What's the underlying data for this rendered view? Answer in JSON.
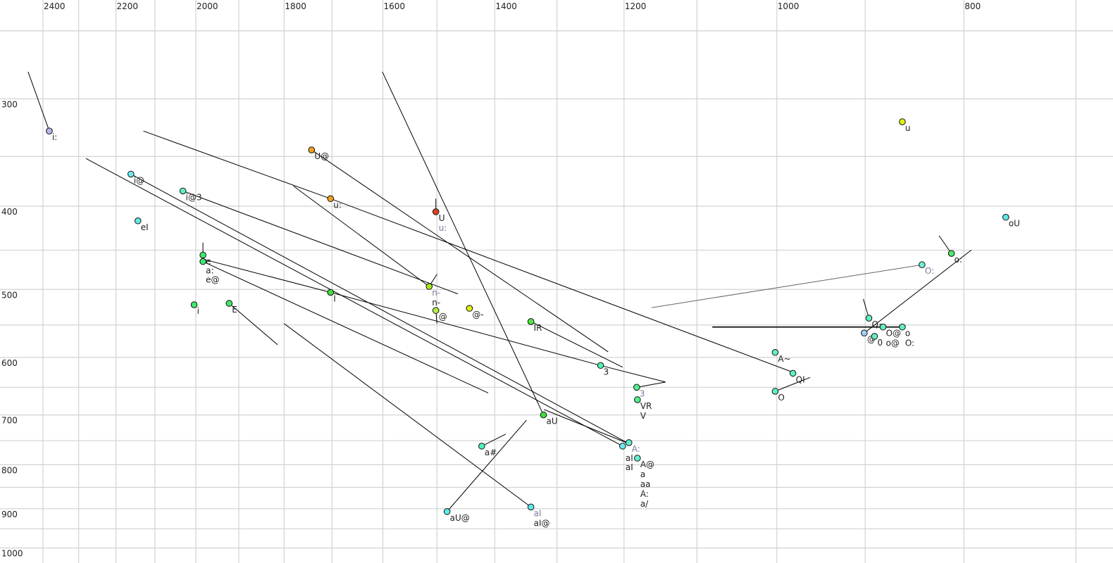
{
  "chart_data": {
    "type": "scatter",
    "title": "",
    "xlabel": "",
    "ylabel": "",
    "x_axis": {
      "quantity": "F2",
      "reversed": true,
      "scale": "log",
      "range": [
        2450,
        680
      ],
      "grid": [
        700,
        800,
        900,
        1000,
        1100,
        1200,
        1300,
        1400,
        1500,
        1600,
        1700,
        1800,
        1900,
        2000,
        2100,
        2200,
        2300,
        2400
      ],
      "tick_labels": [
        "2400",
        "2200",
        "2000",
        "1800",
        "1600",
        "1400",
        "1200",
        "1000",
        "800"
      ],
      "tick_values": [
        2400,
        2200,
        2000,
        1800,
        1600,
        1400,
        1200,
        1000,
        800
      ],
      "position": "top"
    },
    "y_axis": {
      "quantity": "F1",
      "reversed": false,
      "scale": "log",
      "range": [
        235,
        1020
      ],
      "grid": [
        250,
        300,
        350,
        400,
        450,
        500,
        550,
        600,
        650,
        700,
        750,
        800,
        850,
        900,
        950,
        1000
      ],
      "tick_labels": [
        "300",
        "400",
        "500",
        "600",
        "700",
        "800",
        "900",
        "1000"
      ],
      "tick_values": [
        300,
        400,
        500,
        600,
        700,
        800,
        900,
        1000
      ],
      "position": "left"
    },
    "grid": true,
    "points": [
      {
        "f2": 2382,
        "f1": 327,
        "color": "#b8b8f0",
        "labels": [
          {
            "t": "i:"
          }
        ]
      },
      {
        "f2": 2161,
        "f1": 367,
        "color": "#70e8f0",
        "labels": [
          {
            "t": "i@"
          }
        ]
      },
      {
        "f2": 2031,
        "f1": 384,
        "color": "#60f0c0",
        "labels": [
          {
            "t": "i@3"
          }
        ]
      },
      {
        "f2": 2143,
        "f1": 416,
        "color": "#60e8e0",
        "labels": [
          {
            "t": "eI"
          }
        ]
      },
      {
        "f2": 1983,
        "f1": 456,
        "color": "#40e870",
        "labels": [
          {
            "t": "e"
          }
        ]
      },
      {
        "f2": 1983,
        "f1": 464,
        "color": "#40e870",
        "labels": [
          {
            "t": "a:"
          },
          {
            "t": "e@"
          }
        ]
      },
      {
        "f2": 2004,
        "f1": 521,
        "color": "#40e870",
        "labels": [
          {
            "t": "i"
          }
        ]
      },
      {
        "f2": 1922,
        "f1": 519,
        "color": "#40e870",
        "labels": [
          {
            "t": "E"
          }
        ]
      },
      {
        "f2": 1703,
        "f1": 504,
        "color": "#40e040",
        "labels": [
          {
            "t": "I"
          }
        ]
      },
      {
        "f2": 1742,
        "f1": 344,
        "color": "#f0a020",
        "labels": [
          {
            "t": "U@"
          }
        ]
      },
      {
        "f2": 1703,
        "f1": 392,
        "color": "#f0a020",
        "labels": [
          {
            "t": "u:"
          }
        ]
      },
      {
        "f2": 1502,
        "f1": 406,
        "color": "#e04020",
        "labels": [
          {
            "t": "U"
          },
          {
            "t": "u:",
            "grey": true
          }
        ]
      },
      {
        "f2": 1514,
        "f1": 496,
        "color": "#a8e820",
        "labels": [
          {
            "t": "n-",
            "grey": true
          },
          {
            "t": "n-"
          }
        ]
      },
      {
        "f2": 1502,
        "f1": 529,
        "color": "#b0f040",
        "labels": [
          {
            "t": "@"
          }
        ]
      },
      {
        "f2": 1443,
        "f1": 526,
        "color": "#e0f010",
        "labels": [
          {
            "t": "@-"
          }
        ]
      },
      {
        "f2": 1341,
        "f1": 545,
        "color": "#50e840",
        "labels": [
          {
            "t": "IR"
          }
        ]
      },
      {
        "f2": 1234,
        "f1": 613,
        "color": "#50f0b0",
        "labels": [
          {
            "t": "3"
          }
        ]
      },
      {
        "f2": 1182,
        "f1": 650,
        "color": "#50f090",
        "labels": [
          {
            "t": "3",
            "grey": true
          }
        ]
      },
      {
        "f2": 1181,
        "f1": 672,
        "color": "#50f090",
        "labels": [
          {
            "t": "VR"
          },
          {
            "t": "V"
          }
        ]
      },
      {
        "f2": 1321,
        "f1": 700,
        "color": "#40e040",
        "labels": [
          {
            "t": "aU"
          }
        ]
      },
      {
        "f2": 1422,
        "f1": 761,
        "color": "#50f0c0",
        "labels": [
          {
            "t": "a#"
          }
        ]
      },
      {
        "f2": 1482,
        "f1": 907,
        "color": "#60e8e8",
        "labels": [
          {
            "t": "aU@"
          }
        ]
      },
      {
        "f2": 1341,
        "f1": 896,
        "color": "#60e8e8",
        "labels": [
          {
            "t": "aI",
            "grey": true
          },
          {
            "t": "aI@"
          }
        ]
      },
      {
        "f2": 1193,
        "f1": 754,
        "color": "#60f0d0",
        "labels": [
          {
            "t": "A:",
            "grey": true
          }
        ]
      },
      {
        "f2": 1202,
        "f1": 761,
        "color": "#70e8f0",
        "labels": [
          {
            "t": "aI"
          },
          {
            "t": "aI"
          }
        ]
      },
      {
        "f2": 1181,
        "f1": 786,
        "color": "#60f0d0",
        "labels": [
          {
            "t": "A@"
          },
          {
            "t": "a"
          },
          {
            "t": "aa"
          },
          {
            "t": "A:"
          },
          {
            "t": "a/"
          }
        ]
      },
      {
        "f2": 1002,
        "f1": 592,
        "color": "#60f0c0",
        "labels": [
          {
            "t": "A~"
          }
        ]
      },
      {
        "f2": 981,
        "f1": 626,
        "color": "#60f0c0",
        "labels": [
          {
            "t": "QI"
          }
        ]
      },
      {
        "f2": 1002,
        "f1": 657,
        "color": "#60f0c0",
        "labels": [
          {
            "t": "O"
          }
        ]
      },
      {
        "f2": 861,
        "f1": 319,
        "color": "#e0f010",
        "labels": [
          {
            "t": "u"
          }
        ]
      },
      {
        "f2": 761,
        "f1": 412,
        "color": "#60e8e8",
        "labels": [
          {
            "t": "oU"
          }
        ]
      },
      {
        "f2": 812,
        "f1": 454,
        "color": "#50e870",
        "labels": [
          {
            "t": "o:"
          }
        ]
      },
      {
        "f2": 841,
        "f1": 468,
        "color": "#70f0d8",
        "labels": [
          {
            "t": "O:",
            "grey": true
          }
        ]
      },
      {
        "f2": 896,
        "f1": 540,
        "color": "#60f0c0",
        "labels": [
          {
            "t": "Q~"
          }
        ]
      },
      {
        "f2": 901,
        "f1": 562,
        "color": "#a0d0f0",
        "labels": [
          {
            "t": "@"
          }
        ]
      },
      {
        "f2": 890,
        "f1": 567,
        "color": "#60f0c0",
        "labels": [
          {
            "t": "0"
          }
        ]
      },
      {
        "f2": 881,
        "f1": 553,
        "color": "#60f0c0",
        "labels": [
          {
            "t": "O@"
          },
          {
            "t": "o@"
          }
        ]
      },
      {
        "f2": 861,
        "f1": 553,
        "color": "#60f0c0",
        "labels": [
          {
            "t": "o"
          },
          {
            "t": "O:"
          }
        ]
      }
    ],
    "trajectories": [
      {
        "pts": [
          [
            2443,
            279
          ],
          [
            2382,
            327
          ]
        ]
      },
      {
        "pts": [
          [
            2129,
            327
          ],
          [
            1703,
            392
          ],
          [
            978,
            626
          ]
        ]
      },
      {
        "pts": [
          [
            2280,
            352
          ],
          [
            1202,
            761
          ]
        ]
      },
      {
        "pts": [
          [
            2161,
            367
          ],
          [
            1193,
            756
          ]
        ]
      },
      {
        "pts": [
          [
            2031,
            384
          ],
          [
            1463,
            506
          ]
        ]
      },
      {
        "pts": [
          [
            1742,
            344
          ],
          [
            1223,
            591
          ]
        ]
      },
      {
        "pts": [
          [
            1780,
            379
          ],
          [
            1514,
            496
          ]
        ]
      },
      {
        "pts": [
          [
            1601,
            279
          ],
          [
            1321,
            700
          ]
        ]
      },
      {
        "pts": [
          [
            1983,
            441
          ],
          [
            1983,
            456
          ]
        ]
      },
      {
        "pts": [
          [
            1983,
            464
          ],
          [
            1411,
            660
          ]
        ]
      },
      {
        "pts": [
          [
            1983,
            461
          ],
          [
            1703,
            504
          ],
          [
            1234,
            613
          ],
          [
            1142,
            641
          ],
          [
            1181,
            650
          ]
        ]
      },
      {
        "pts": [
          [
            1922,
            519
          ],
          [
            1814,
            580
          ]
        ]
      },
      {
        "pts": [
          [
            1800,
            548
          ],
          [
            1341,
            896
          ]
        ]
      },
      {
        "pts": [
          [
            1482,
            907
          ],
          [
            1348,
            710
          ]
        ]
      },
      {
        "pts": [
          [
            1422,
            761
          ],
          [
            1382,
            737
          ]
        ]
      },
      {
        "pts": [
          [
            1341,
            545
          ],
          [
            1202,
            616
          ]
        ]
      },
      {
        "pts": [
          [
            1320,
            690
          ],
          [
            1193,
            756
          ]
        ]
      },
      {
        "pts": [
          [
            1514,
            496
          ],
          [
            1500,
            480
          ]
        ]
      },
      {
        "pts": [
          [
            1502,
            406
          ],
          [
            1502,
            392
          ]
        ]
      },
      {
        "pts": [
          [
            1502,
            529
          ],
          [
            1500,
            548
          ]
        ]
      },
      {
        "pts": [
          [
            1161,
            525
          ],
          [
            841,
            468
          ]
        ],
        "grey": true
      },
      {
        "pts": [
          [
            1080,
            553
          ],
          [
            862,
            553
          ]
        ],
        "thick": true
      },
      {
        "pts": [
          [
            902,
            513
          ],
          [
            896,
            540
          ]
        ]
      },
      {
        "pts": [
          [
            901,
            562
          ],
          [
            793,
            450
          ]
        ]
      },
      {
        "pts": [
          [
            824,
            433
          ],
          [
            812,
            454
          ]
        ]
      },
      {
        "pts": [
          [
            1002,
            657
          ],
          [
            961,
            633
          ]
        ]
      }
    ]
  }
}
